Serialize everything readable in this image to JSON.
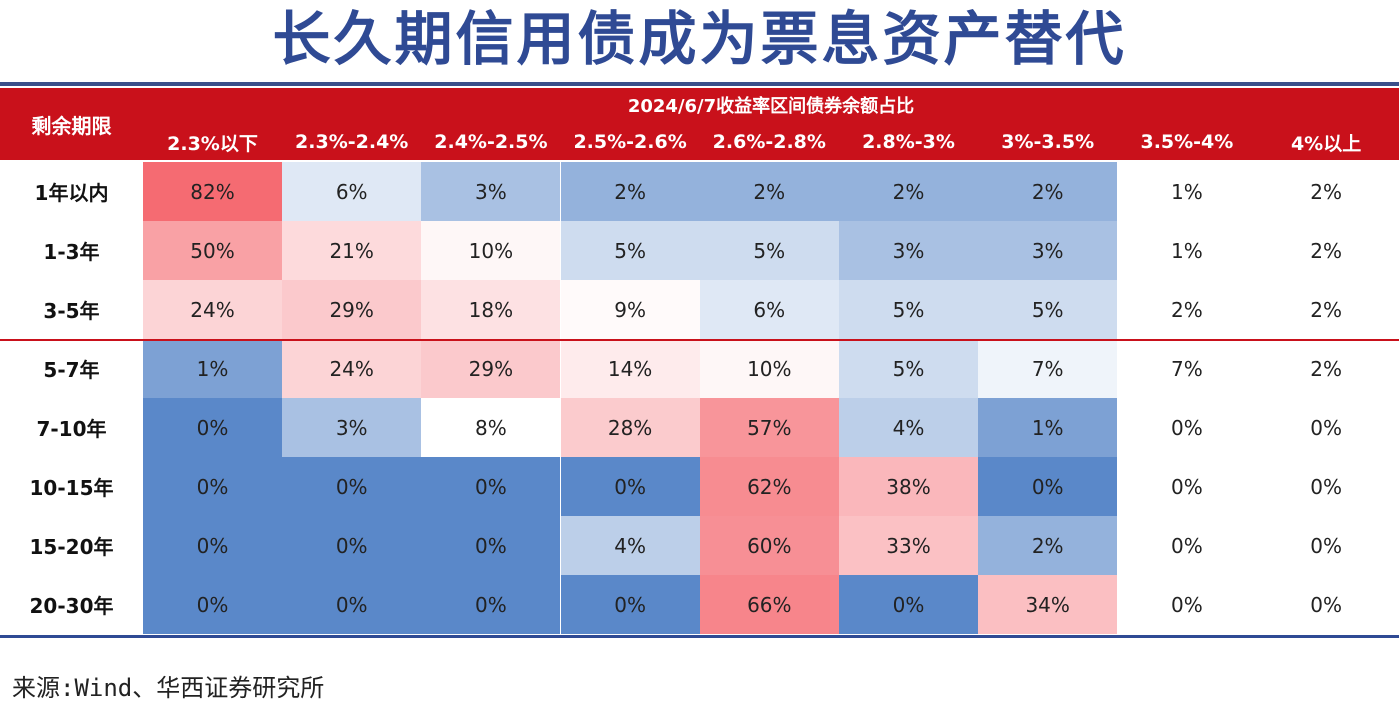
{
  "title": "长久期信用债成为票息资产替代",
  "source": "来源:Wind、华西证券研究所",
  "chart_data": {
    "type": "heatmap",
    "title": "长久期信用债成为票息资产替代",
    "row_header": "剩余期限",
    "column_group_label": "2024/6/7收益率区间债券余额占比",
    "columns": [
      "2.3%以下",
      "2.3%-2.4%",
      "2.4%-2.5%",
      "2.5%-2.6%",
      "2.6%-2.8%",
      "2.8%-3%",
      "3%-3.5%",
      "3.5%-4%",
      "4%以上"
    ],
    "rows": [
      "1年以内",
      "1-3年",
      "3-5年",
      "5-7年",
      "7-10年",
      "10-15年",
      "15-20年",
      "20-30年"
    ],
    "values": [
      [
        82,
        6,
        3,
        2,
        2,
        2,
        2,
        1,
        2
      ],
      [
        50,
        21,
        10,
        5,
        5,
        3,
        3,
        1,
        2
      ],
      [
        24,
        29,
        18,
        9,
        6,
        5,
        5,
        2,
        2
      ],
      [
        1,
        24,
        29,
        14,
        10,
        5,
        7,
        7,
        2
      ],
      [
        0,
        3,
        8,
        28,
        57,
        4,
        1,
        0,
        0
      ],
      [
        0,
        0,
        0,
        0,
        62,
        38,
        0,
        0,
        0
      ],
      [
        0,
        0,
        0,
        4,
        60,
        33,
        2,
        0,
        0
      ],
      [
        0,
        0,
        0,
        0,
        66,
        0,
        34,
        0,
        0
      ]
    ],
    "unit": "%",
    "colored_columns": 7,
    "colors": {
      "header_bg": "#c9111b",
      "title": "#2f4a94",
      "high": "#f56b72",
      "mid": "#ffffff",
      "low": "#5a88c9"
    }
  }
}
